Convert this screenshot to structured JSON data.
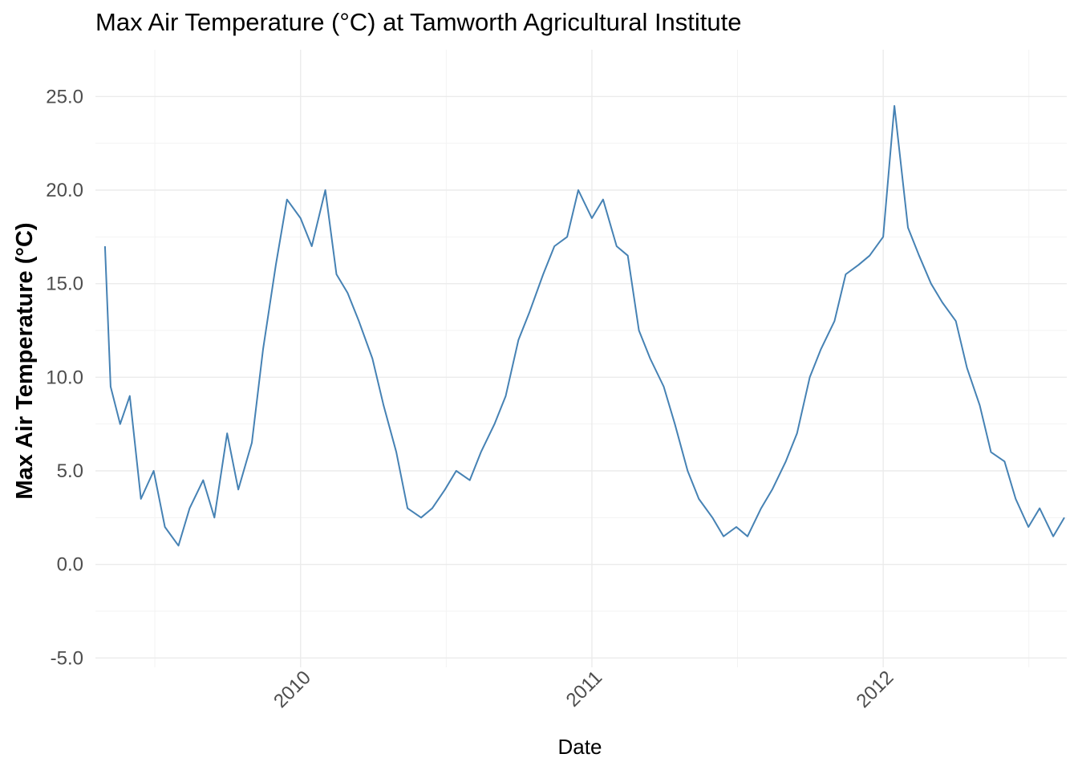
{
  "chart_data": {
    "type": "line",
    "title": "Max Air Temperature (°C) at Tamworth Agricultural Institute",
    "xlabel": "Date",
    "ylabel": "Max Air Temperature (°C)",
    "x_axis": {
      "type": "date",
      "range": [
        "2009-04-19",
        "2012-08-18"
      ],
      "tick_dates": [
        "2010-01-01",
        "2011-01-01",
        "2012-01-01"
      ],
      "tick_labels": [
        "2010",
        "2011",
        "2012"
      ],
      "tick_label_rotation": "45 degrees"
    },
    "y_axis": {
      "range": [
        -5.5,
        27.5
      ],
      "tick_values": [
        -5,
        0,
        5,
        10,
        15,
        20,
        25
      ],
      "tick_labels": [
        "-5.0",
        "0.0",
        "5.0",
        "10.0",
        "15.0",
        "20.0",
        "25.0"
      ]
    },
    "grid": true,
    "legend": "none",
    "series": [
      {
        "color": "#4682B4",
        "x": [
          "2009-05-01",
          "2009-05-08",
          "2009-05-20",
          "2009-06-01",
          "2009-06-15",
          "2009-07-01",
          "2009-07-15",
          "2009-08-01",
          "2009-08-15",
          "2009-09-01",
          "2009-09-15",
          "2009-10-01",
          "2009-10-15",
          "2009-11-01",
          "2009-11-15",
          "2009-12-01",
          "2009-12-15",
          "2010-01-01",
          "2010-01-15",
          "2010-02-01",
          "2010-02-15",
          "2010-03-01",
          "2010-03-15",
          "2010-04-01",
          "2010-04-15",
          "2010-05-01",
          "2010-05-15",
          "2010-06-01",
          "2010-06-15",
          "2010-07-01",
          "2010-07-15",
          "2010-08-01",
          "2010-08-15",
          "2010-09-01",
          "2010-09-15",
          "2010-10-01",
          "2010-10-15",
          "2010-11-01",
          "2010-11-15",
          "2010-12-01",
          "2010-12-15",
          "2011-01-01",
          "2011-01-15",
          "2011-02-01",
          "2011-02-15",
          "2011-03-01",
          "2011-03-15",
          "2011-04-01",
          "2011-04-15",
          "2011-05-01",
          "2011-05-15",
          "2011-06-01",
          "2011-06-15",
          "2011-07-01",
          "2011-07-15",
          "2011-08-01",
          "2011-08-15",
          "2011-09-01",
          "2011-09-15",
          "2011-10-01",
          "2011-10-15",
          "2011-11-01",
          "2011-11-15",
          "2011-12-01",
          "2011-12-15",
          "2012-01-01",
          "2012-01-15",
          "2012-02-01",
          "2012-02-15",
          "2012-03-01",
          "2012-03-15",
          "2012-04-01",
          "2012-04-15",
          "2012-05-01",
          "2012-05-15",
          "2012-06-01",
          "2012-06-15",
          "2012-07-01",
          "2012-07-15",
          "2012-08-01",
          "2012-08-15"
        ],
        "y": [
          17.0,
          9.5,
          7.5,
          9.0,
          3.5,
          5.0,
          2.0,
          1.0,
          3.0,
          4.5,
          2.5,
          7.0,
          4.0,
          6.5,
          11.5,
          16.0,
          19.5,
          18.5,
          17.0,
          20.0,
          15.5,
          14.5,
          13.0,
          11.0,
          8.5,
          6.0,
          3.0,
          2.5,
          3.0,
          4.0,
          5.0,
          4.5,
          6.0,
          7.5,
          9.0,
          12.0,
          13.5,
          15.5,
          17.0,
          17.5,
          20.0,
          18.5,
          19.5,
          17.0,
          16.5,
          12.5,
          11.0,
          9.5,
          7.5,
          5.0,
          3.5,
          2.5,
          1.5,
          2.0,
          1.5,
          3.0,
          4.0,
          5.5,
          7.0,
          10.0,
          11.5,
          13.0,
          15.5,
          16.0,
          16.5,
          17.5,
          24.5,
          18.0,
          16.5,
          15.0,
          14.0,
          13.0,
          10.5,
          8.5,
          6.0,
          5.5,
          3.5,
          2.0,
          3.0,
          1.5,
          2.5
        ]
      }
    ]
  }
}
